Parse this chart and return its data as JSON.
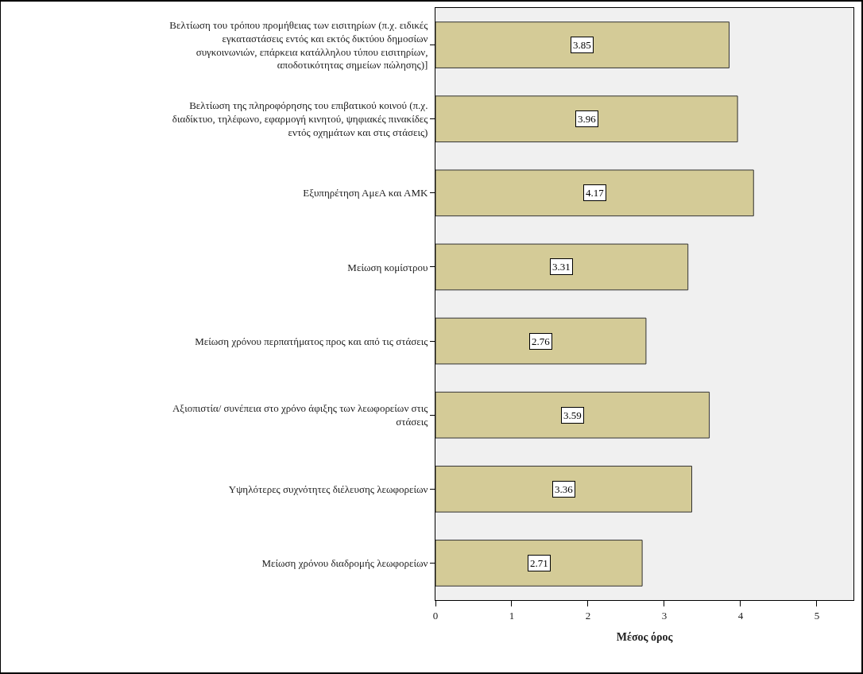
{
  "chart_data": {
    "type": "bar",
    "orientation": "horizontal",
    "xlabel": "Μέσος όρος",
    "categories": [
      "Βελτίωση του τρόπου προμήθειας των εισιτηρίων (π.χ. ειδικές\nεγκαταστάσεις εντός και εκτός δικτύου δημοσίων\nσυγκοινωνιών, επάρκεια κατάλληλου τύπου εισιτηρίων,\nαποδοτικότητας σημείων πώλησης)]",
      "Βελτίωση της πληροφόρησης του επιβατικού κοινού (π.χ.\nδιαδίκτυο, τηλέφωνο, εφαρμογή κινητού, ψηφιακές πινακίδες\nεντός οχημάτων και στις στάσεις)",
      "Εξυπηρέτηση ΑμεΑ και ΑΜΚ",
      "Μείωση κομίστρου",
      "Μείωση χρόνου περπατήματος προς και από τις στάσεις",
      "Αξιοπιστία/ συνέπεια στο χρόνο άφιξης των λεωφορείων στις\nστάσεις",
      "Υψηλότερες συχνότητες διέλευσης λεωφορείων",
      "Μείωση χρόνου διαδρομής λεωφορείων"
    ],
    "values": [
      3.85,
      3.96,
      4.17,
      3.31,
      2.76,
      3.59,
      3.36,
      2.71
    ],
    "color": "#d4cb97",
    "xlim": [
      0,
      5.48
    ],
    "xticks": [
      0,
      1,
      2,
      3,
      4,
      5
    ],
    "data_labels": true,
    "grid": false,
    "legend": false
  }
}
